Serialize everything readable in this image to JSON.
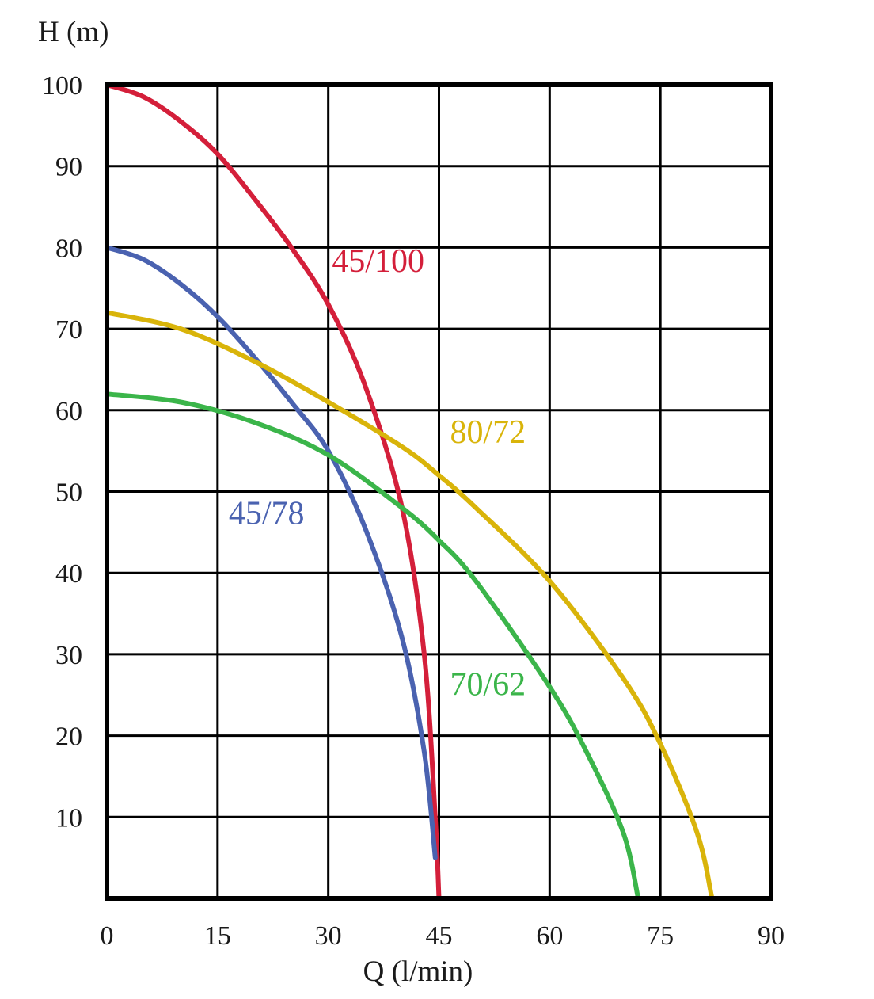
{
  "chart_data": {
    "type": "line",
    "title": "",
    "xlabel": "Q (l/min)",
    "ylabel": "H (m)",
    "xlim": [
      0,
      90
    ],
    "ylim": [
      0,
      100
    ],
    "x_ticks": [
      "0",
      "15",
      "30",
      "45",
      "60",
      "75",
      "90"
    ],
    "y_ticks": [
      "10",
      "20",
      "30",
      "40",
      "50",
      "60",
      "70",
      "80",
      "90",
      "100"
    ],
    "grid": true,
    "series": [
      {
        "name": "45/100",
        "color": "#d41f3a",
        "label_at": [
          30.5,
          77
        ],
        "points": [
          [
            0,
            100
          ],
          [
            5,
            98.5
          ],
          [
            10,
            95.5
          ],
          [
            15,
            91.5
          ],
          [
            20,
            86
          ],
          [
            25,
            80
          ],
          [
            30,
            73
          ],
          [
            35,
            63
          ],
          [
            40,
            48
          ],
          [
            43,
            30
          ],
          [
            44.5,
            10
          ],
          [
            45,
            0
          ]
        ]
      },
      {
        "name": "45/78",
        "color": "#4a62b0",
        "label_at": [
          16.5,
          46
        ],
        "points": [
          [
            0,
            80
          ],
          [
            5,
            78.5
          ],
          [
            10,
            75.5
          ],
          [
            15,
            71.5
          ],
          [
            20,
            66.5
          ],
          [
            25,
            61
          ],
          [
            30,
            55
          ],
          [
            35,
            45.5
          ],
          [
            40,
            32
          ],
          [
            43,
            18
          ],
          [
            44.5,
            5
          ]
        ]
      },
      {
        "name": "80/72",
        "color": "#d9b40a",
        "label_at": [
          46.5,
          56
        ],
        "points": [
          [
            0,
            72
          ],
          [
            10,
            70
          ],
          [
            20,
            66
          ],
          [
            30,
            61
          ],
          [
            40,
            55.5
          ],
          [
            45,
            52
          ],
          [
            50,
            48
          ],
          [
            60,
            39
          ],
          [
            70,
            27
          ],
          [
            75,
            19
          ],
          [
            80,
            8
          ],
          [
            82,
            0
          ]
        ]
      },
      {
        "name": "70/62",
        "color": "#3bb54a",
        "label_at": [
          46.5,
          25
        ],
        "points": [
          [
            0,
            62
          ],
          [
            10,
            61
          ],
          [
            20,
            58.5
          ],
          [
            30,
            54.5
          ],
          [
            40,
            48
          ],
          [
            45,
            44
          ],
          [
            50,
            39
          ],
          [
            60,
            26
          ],
          [
            65,
            18
          ],
          [
            70,
            8
          ],
          [
            72,
            0
          ]
        ]
      }
    ]
  }
}
